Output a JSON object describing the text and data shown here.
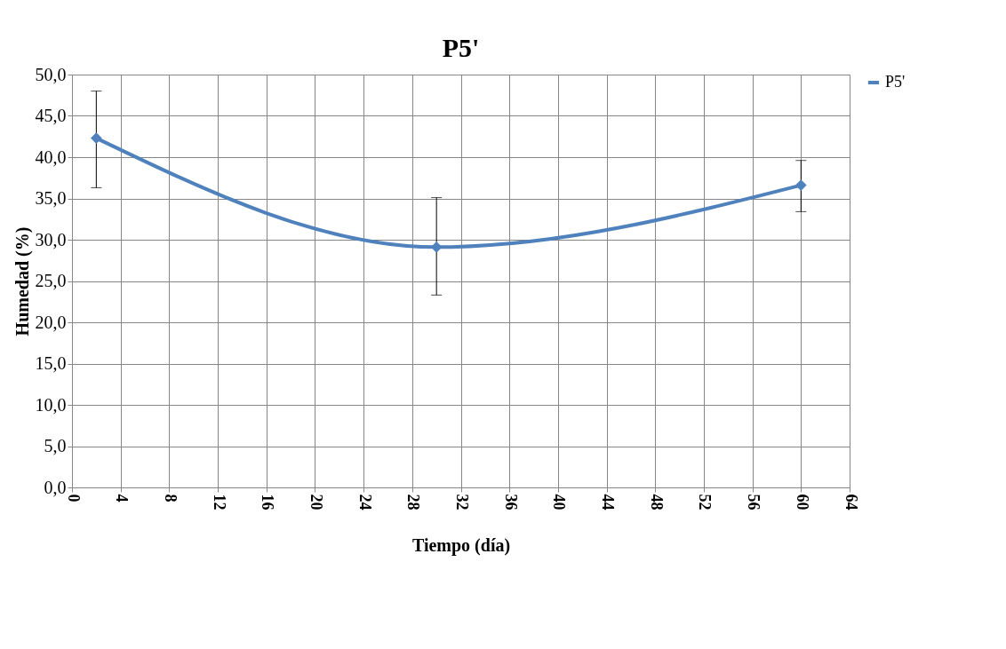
{
  "chart_data": {
    "type": "line",
    "title": "P5'",
    "xlabel": "Tiempo (día)",
    "ylabel": "Humedad (%)",
    "x": [
      2,
      30,
      60
    ],
    "series": [
      {
        "name": "P5'",
        "color": "#4f81bd",
        "values": [
          42.3,
          29.1,
          36.6
        ],
        "errors": [
          [
            36.3,
            48.0
          ],
          [
            23.3,
            35.1
          ],
          [
            33.4,
            39.6
          ]
        ]
      }
    ],
    "xlim": [
      0,
      64
    ],
    "xticks": [
      0,
      4,
      8,
      12,
      16,
      20,
      24,
      28,
      32,
      36,
      40,
      44,
      48,
      52,
      56,
      60,
      64
    ],
    "ylim": [
      0,
      50
    ],
    "yticks": [
      {
        "value": 0,
        "label": "0,0"
      },
      {
        "value": 5,
        "label": "5,0"
      },
      {
        "value": 10,
        "label": "10,0"
      },
      {
        "value": 15,
        "label": "15,0"
      },
      {
        "value": 20,
        "label": "20,0"
      },
      {
        "value": 25,
        "label": "25,0"
      },
      {
        "value": 30,
        "label": "30,0"
      },
      {
        "value": 35,
        "label": "35,0"
      },
      {
        "value": 40,
        "label": "40,0"
      },
      {
        "value": 45,
        "label": "45,0"
      },
      {
        "value": 50,
        "label": "50,0"
      }
    ],
    "grid": true,
    "legend": "right",
    "marker": "diamond",
    "line_style": "solid"
  }
}
